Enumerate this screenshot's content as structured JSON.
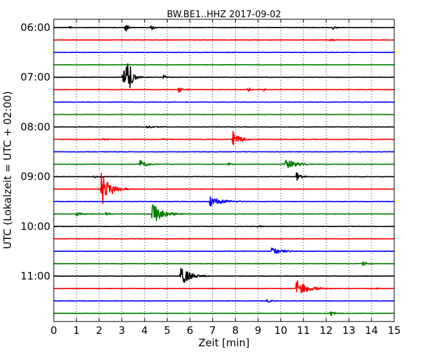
{
  "chart_data": {
    "type": "line",
    "title": "BW.BE1..HHZ 2017-09-02",
    "xlabel": "Zeit  [min]",
    "ylabel": "UTC (Lokalzeit = UTC + 02:00)",
    "xlim": [
      0,
      15
    ],
    "x_ticks": [
      "0",
      "1",
      "2",
      "3",
      "4",
      "5",
      "6",
      "7",
      "8",
      "9",
      "10",
      "11",
      "12",
      "13",
      "14",
      "15"
    ],
    "y_ticks": [
      {
        "label": "06:00",
        "trace": 0
      },
      {
        "label": "07:00",
        "trace": 4
      },
      {
        "label": "08:00",
        "trace": 8
      },
      {
        "label": "09:00",
        "trace": 12
      },
      {
        "label": "10:00",
        "trace": 16
      },
      {
        "label": "11:00",
        "trace": 20
      }
    ],
    "vertical_grid": "dotted at every minute",
    "trace_interval_minutes": 15,
    "trace_colors": [
      "#000000",
      "#ff0000",
      "#0000ff",
      "#008000"
    ],
    "traces": [
      {
        "start": "06:00",
        "events": [
          {
            "t": 0.7,
            "amp": 0.15,
            "dur": 0.15
          },
          {
            "t": 3.15,
            "amp": 0.45,
            "dur": 0.2
          },
          {
            "t": 4.3,
            "amp": 0.35,
            "dur": 0.15
          },
          {
            "t": 12.3,
            "amp": 0.15,
            "dur": 0.2
          }
        ]
      },
      {
        "start": "06:15",
        "events": [
          {
            "t": 12.2,
            "amp": 0.12,
            "dur": 0.3
          }
        ]
      },
      {
        "start": "06:30",
        "events": []
      },
      {
        "start": "06:45",
        "events": []
      },
      {
        "start": "07:00",
        "events": [
          {
            "t": 3.05,
            "amp": 0.6,
            "dur": 0.5
          },
          {
            "t": 3.22,
            "amp": 2.0,
            "dur": 0.25
          },
          {
            "t": 4.85,
            "amp": 0.25,
            "dur": 0.15
          }
        ]
      },
      {
        "start": "07:15",
        "events": [
          {
            "t": 5.5,
            "amp": 0.2,
            "dur": 0.3
          },
          {
            "t": 8.55,
            "amp": 0.25,
            "dur": 0.15
          },
          {
            "t": 9.25,
            "amp": 0.12,
            "dur": 0.2
          }
        ]
      },
      {
        "start": "07:30",
        "events": []
      },
      {
        "start": "07:45",
        "events": []
      },
      {
        "start": "08:00",
        "events": [
          {
            "t": 4.1,
            "amp": 0.12,
            "dur": 0.6
          }
        ]
      },
      {
        "start": "08:15",
        "events": [
          {
            "t": 7.9,
            "amp": 0.65,
            "dur": 0.45
          },
          {
            "t": 2.2,
            "amp": 0.1,
            "dur": 0.3
          },
          {
            "t": 4.8,
            "amp": 0.1,
            "dur": 0.2
          }
        ]
      },
      {
        "start": "08:30",
        "events": []
      },
      {
        "start": "08:45",
        "events": [
          {
            "t": 3.8,
            "amp": 0.35,
            "dur": 0.5
          },
          {
            "t": 7.0,
            "amp": 0.15,
            "dur": 0.15
          },
          {
            "t": 7.7,
            "amp": 0.2,
            "dur": 0.15
          },
          {
            "t": 10.2,
            "amp": 0.4,
            "dur": 0.8
          }
        ]
      },
      {
        "start": "09:00",
        "events": [
          {
            "t": 1.8,
            "amp": 0.15,
            "dur": 0.4
          },
          {
            "t": 10.7,
            "amp": 0.35,
            "dur": 0.3
          }
        ]
      },
      {
        "start": "09:15",
        "events": [
          {
            "t": 2.1,
            "amp": 1.4,
            "dur": 0.6
          }
        ]
      },
      {
        "start": "09:30",
        "events": [
          {
            "t": 6.85,
            "amp": 0.55,
            "dur": 0.8
          }
        ]
      },
      {
        "start": "09:45",
        "events": [
          {
            "t": 1.0,
            "amp": 0.15,
            "dur": 0.6
          },
          {
            "t": 2.3,
            "amp": 0.15,
            "dur": 0.3
          },
          {
            "t": 4.35,
            "amp": 0.85,
            "dur": 0.7
          }
        ]
      },
      {
        "start": "10:00",
        "events": [
          {
            "t": 9.0,
            "amp": 0.1,
            "dur": 0.3
          }
        ]
      },
      {
        "start": "10:15",
        "events": []
      },
      {
        "start": "10:30",
        "events": [
          {
            "t": 9.6,
            "amp": 0.4,
            "dur": 0.6
          }
        ]
      },
      {
        "start": "10:45",
        "events": [
          {
            "t": 13.6,
            "amp": 0.2,
            "dur": 0.4
          }
        ]
      },
      {
        "start": "11:00",
        "events": [
          {
            "t": 5.6,
            "amp": 0.85,
            "dur": 0.6
          }
        ]
      },
      {
        "start": "11:15",
        "events": [
          {
            "t": 10.7,
            "amp": 0.75,
            "dur": 0.7
          },
          {
            "t": 14.2,
            "amp": 0.12,
            "dur": 0.15
          }
        ]
      },
      {
        "start": "11:30",
        "events": [
          {
            "t": 9.4,
            "amp": 0.2,
            "dur": 0.2
          }
        ]
      },
      {
        "start": "11:45",
        "events": [
          {
            "t": 12.2,
            "amp": 0.2,
            "dur": 0.3
          }
        ]
      }
    ]
  }
}
